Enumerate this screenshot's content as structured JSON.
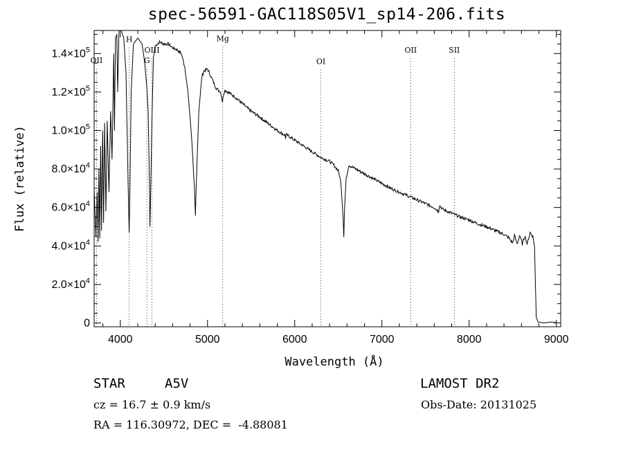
{
  "chart_data": {
    "type": "line",
    "title": "spec-56591-GAC118S05V1_sp14-206.fits",
    "xlabel": "Wavelength (Å)",
    "ylabel": "Flux (relative)",
    "xlim": [
      3700,
      9050
    ],
    "ylim": [
      -2000,
      152000
    ],
    "x_ticks": [
      4000,
      5000,
      6000,
      7000,
      8000,
      9000
    ],
    "x_tick_labels": [
      "4000",
      "5000",
      "6000",
      "7000",
      "8000",
      "9000"
    ],
    "y_ticks": [
      0,
      20000,
      40000,
      60000,
      80000,
      100000,
      120000,
      140000
    ],
    "y_tick_labels": [
      {
        "mant": "0",
        "exp": ""
      },
      {
        "mant": "2.0×10",
        "exp": "4"
      },
      {
        "mant": "4.0×10",
        "exp": "4"
      },
      {
        "mant": "6.0×10",
        "exp": "4"
      },
      {
        "mant": "8.0×10",
        "exp": "4"
      },
      {
        "mant": "1.0×10",
        "exp": "5"
      },
      {
        "mant": "1.2×10",
        "exp": "5"
      },
      {
        "mant": "1.4×10",
        "exp": "5"
      }
    ],
    "grid": false,
    "legend": "none",
    "line_color": "#000000",
    "spectral_lines": [
      {
        "label": "OII",
        "wavelength": 3727,
        "label_y": 135000
      },
      {
        "label": "H",
        "wavelength": 4102,
        "label_y": 146000
      },
      {
        "label": "G",
        "wavelength": 4305,
        "label_y": 135000
      },
      {
        "label": "OIII",
        "wavelength": 4363,
        "label_y": 140500
      },
      {
        "label": "Mg",
        "wavelength": 5175,
        "label_y": 146500
      },
      {
        "label": "OI",
        "wavelength": 6300,
        "label_y": 134500
      },
      {
        "label": "OII",
        "wavelength": 7330,
        "label_y": 140500
      },
      {
        "label": "SII",
        "wavelength": 7830,
        "label_y": 140500
      }
    ],
    "series": [
      {
        "points": [
          [
            3700,
            70000
          ],
          [
            3720,
            45000
          ],
          [
            3735,
            68000
          ],
          [
            3745,
            42000
          ],
          [
            3755,
            80000
          ],
          [
            3765,
            44000
          ],
          [
            3775,
            92000
          ],
          [
            3785,
            48000
          ],
          [
            3798,
            100000
          ],
          [
            3808,
            52000
          ],
          [
            3820,
            104000
          ],
          [
            3835,
            58000
          ],
          [
            3850,
            105000
          ],
          [
            3870,
            68000
          ],
          [
            3889,
            110000
          ],
          [
            3905,
            85000
          ],
          [
            3925,
            140000
          ],
          [
            3933,
            100000
          ],
          [
            3945,
            148000
          ],
          [
            3960,
            150000
          ],
          [
            3970,
            120000
          ],
          [
            3985,
            152000
          ],
          [
            4010,
            152000
          ],
          [
            4040,
            148000
          ],
          [
            4065,
            130000
          ],
          [
            4080,
            95000
          ],
          [
            4095,
            60000
          ],
          [
            4102,
            47000
          ],
          [
            4110,
            70000
          ],
          [
            4125,
            120000
          ],
          [
            4150,
            145000
          ],
          [
            4200,
            148000
          ],
          [
            4250,
            145000
          ],
          [
            4280,
            135000
          ],
          [
            4305,
            122000
          ],
          [
            4320,
            110000
          ],
          [
            4335,
            70000
          ],
          [
            4340,
            50000
          ],
          [
            4350,
            72000
          ],
          [
            4365,
            110000
          ],
          [
            4380,
            138000
          ],
          [
            4400,
            144000
          ],
          [
            4450,
            146000
          ],
          [
            4500,
            145000
          ],
          [
            4550,
            145000
          ],
          [
            4600,
            143000
          ],
          [
            4650,
            142000
          ],
          [
            4700,
            140000
          ],
          [
            4740,
            133000
          ],
          [
            4780,
            118000
          ],
          [
            4820,
            95000
          ],
          [
            4850,
            70000
          ],
          [
            4861,
            55000
          ],
          [
            4870,
            70000
          ],
          [
            4900,
            110000
          ],
          [
            4935,
            128000
          ],
          [
            4960,
            131000
          ],
          [
            5000,
            132000
          ],
          [
            5050,
            127000
          ],
          [
            5100,
            122000
          ],
          [
            5150,
            120000
          ],
          [
            5172,
            115000
          ],
          [
            5185,
            119000
          ],
          [
            5200,
            121000
          ],
          [
            5300,
            118000
          ],
          [
            5400,
            114000
          ],
          [
            5500,
            110000
          ],
          [
            5600,
            107000
          ],
          [
            5700,
            103500
          ],
          [
            5800,
            100000
          ],
          [
            5890,
            97500
          ],
          [
            5895,
            96000
          ],
          [
            5900,
            98000
          ],
          [
            6000,
            95000
          ],
          [
            6100,
            92000
          ],
          [
            6200,
            89000
          ],
          [
            6250,
            87500
          ],
          [
            6300,
            86000
          ],
          [
            6400,
            84000
          ],
          [
            6450,
            82000
          ],
          [
            6500,
            79000
          ],
          [
            6530,
            73000
          ],
          [
            6555,
            55000
          ],
          [
            6563,
            45000
          ],
          [
            6570,
            58000
          ],
          [
            6590,
            75000
          ],
          [
            6620,
            82000
          ],
          [
            6700,
            80000
          ],
          [
            6800,
            77500
          ],
          [
            6900,
            75000
          ],
          [
            7000,
            72500
          ],
          [
            7100,
            70000
          ],
          [
            7200,
            68000
          ],
          [
            7300,
            66000
          ],
          [
            7400,
            64000
          ],
          [
            7500,
            62000
          ],
          [
            7600,
            60000
          ],
          [
            7650,
            58000
          ],
          [
            7660,
            61000
          ],
          [
            7700,
            59000
          ],
          [
            7800,
            57000
          ],
          [
            7900,
            55000
          ],
          [
            8000,
            53500
          ],
          [
            8100,
            51500
          ],
          [
            8200,
            50000
          ],
          [
            8300,
            48000
          ],
          [
            8400,
            46000
          ],
          [
            8450,
            44500
          ],
          [
            8500,
            41500
          ],
          [
            8520,
            45500
          ],
          [
            8550,
            41000
          ],
          [
            8580,
            45500
          ],
          [
            8610,
            41000
          ],
          [
            8640,
            45500
          ],
          [
            8665,
            41000
          ],
          [
            8700,
            47000
          ],
          [
            8730,
            45000
          ],
          [
            8750,
            40000
          ],
          [
            8760,
            20000
          ],
          [
            8770,
            3000
          ],
          [
            8790,
            500
          ],
          [
            8850,
            0
          ],
          [
            8950,
            500
          ],
          [
            9000,
            0
          ]
        ]
      }
    ]
  },
  "info": {
    "object_class": "STAR",
    "subclass": "A5V",
    "survey": "LAMOST DR2",
    "cz": "cz = 16.7 ± 0.9 km/s",
    "obs_date": "Obs-Date: 20131025",
    "coords": "RA = 116.30972, DEC =  -4.88081"
  }
}
